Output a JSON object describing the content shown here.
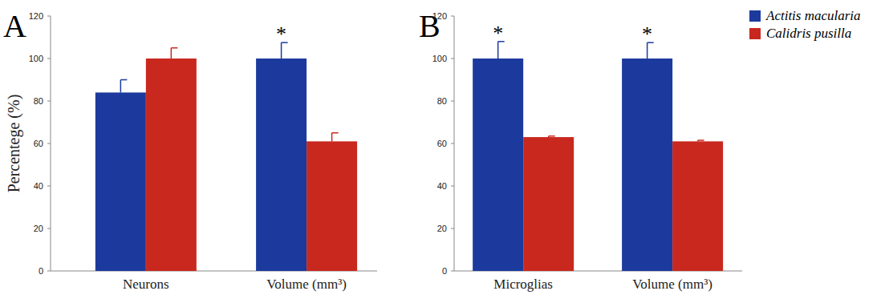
{
  "chart_data": [
    {
      "type": "bar",
      "title": "A",
      "y_label": "Percentege (%)",
      "categories": [
        "Neurons",
        "Volume (mm³)"
      ],
      "series": [
        {
          "name": "Actitis macularia",
          "color": "#1c3a9e",
          "values": [
            84,
            100
          ],
          "errors": [
            6,
            7.5
          ]
        },
        {
          "name": "Calidris pusilla",
          "color": "#c8281e",
          "values": [
            100,
            61
          ],
          "errors": [
            5,
            4
          ]
        }
      ],
      "ylim": [
        0,
        120
      ],
      "yticks": [
        0,
        20,
        40,
        60,
        80,
        100,
        120
      ],
      "annotations": [
        {
          "text": "*",
          "category": 1
        }
      ]
    },
    {
      "type": "bar",
      "title": "B",
      "categories": [
        "Microglias",
        "Volume (mm³)"
      ],
      "series": [
        {
          "name": "Actitis macularia",
          "color": "#1c3a9e",
          "values": [
            100,
            100
          ],
          "errors": [
            8,
            7.5
          ]
        },
        {
          "name": "Calidris pusilla",
          "color": "#c8281e",
          "values": [
            63,
            61
          ],
          "errors": [
            0.5,
            0.5
          ]
        }
      ],
      "ylim": [
        0,
        120
      ],
      "yticks": [
        0,
        20,
        40,
        60,
        80,
        100,
        120
      ],
      "legend": "top-right",
      "annotations": [
        {
          "text": "*",
          "category": 0
        },
        {
          "text": "*",
          "category": 1
        }
      ]
    }
  ]
}
